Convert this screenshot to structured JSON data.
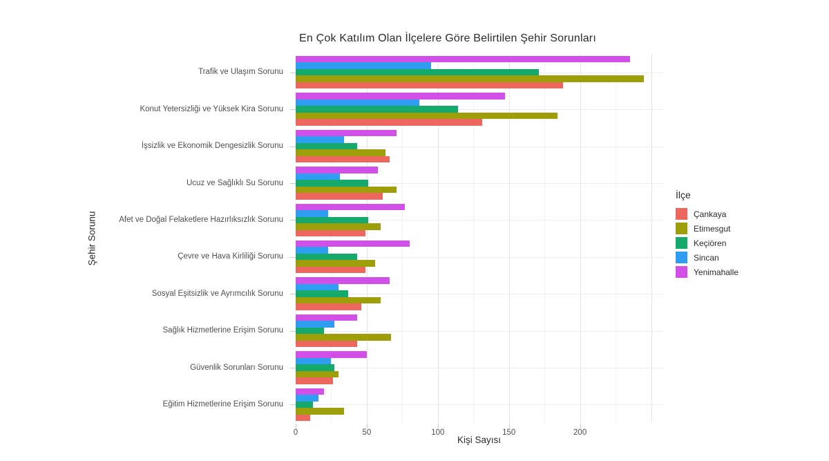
{
  "title": "En Çok Katılım Olan İlçelere Göre Belirtilen Şehir Sorunları",
  "chart_data": {
    "type": "bar",
    "orientation": "horizontal",
    "title": "En Çok Katılım Olan İlçelere Göre Belirtilen Şehir Sorunları",
    "xlabel": "Kişi Sayısı",
    "ylabel": "Şehir Sorunu",
    "legend_title": "İlçe",
    "legend_position": "right",
    "xlim": [
      0,
      258
    ],
    "x_ticks": [
      0,
      50,
      100,
      150,
      200
    ],
    "grid": "vertical major every 50 with minor every 25; horizontal major at each category",
    "categories": [
      "Trafik ve Ulaşım Sorunu",
      "Konut Yetersizliği ve Yüksek Kira Sorunu",
      "İşsizlik ve Ekonomik Dengesizlik Sorunu",
      "Ucuz ve Sağlıklı Su Sorunu",
      "Afet ve Doğal Felaketlere Hazırlıksızlık Sorunu",
      "Çevre ve Hava Kirliliği Sorunu",
      "Sosyal Eşitsizlik ve Ayrımcılık Sorunu",
      "Sağlık Hizmetlerine Erişim Sorunu",
      "Güvenlik Sorunları Sorunu",
      "Eğitim Hizmetlerine Erişim Sorunu"
    ],
    "series": [
      {
        "name": "Çankaya",
        "color": "#ee675f",
        "values": [
          188,
          131,
          66,
          61,
          49,
          49,
          46,
          43,
          26,
          10
        ]
      },
      {
        "name": "Etimesgut",
        "color": "#9d9e09",
        "values": [
          245,
          184,
          63,
          71,
          60,
          56,
          60,
          67,
          30,
          34
        ]
      },
      {
        "name": "Keçiören",
        "color": "#16a96c",
        "values": [
          171,
          114,
          43,
          51,
          51,
          43,
          37,
          20,
          27,
          12
        ]
      },
      {
        "name": "Sincan",
        "color": "#2e9df2",
        "values": [
          95,
          87,
          34,
          31,
          23,
          23,
          30,
          27,
          25,
          16
        ]
      },
      {
        "name": "Yenimahalle",
        "color": "#d24fe8",
        "values": [
          235,
          147,
          71,
          58,
          77,
          80,
          66,
          43,
          50,
          20
        ]
      }
    ],
    "bar_stack_order_note": "within each category group, bars top-to-bottom are last series to first series (Yenimahalle, Sincan, Keçiören, Etimesgut, Çankaya)"
  }
}
